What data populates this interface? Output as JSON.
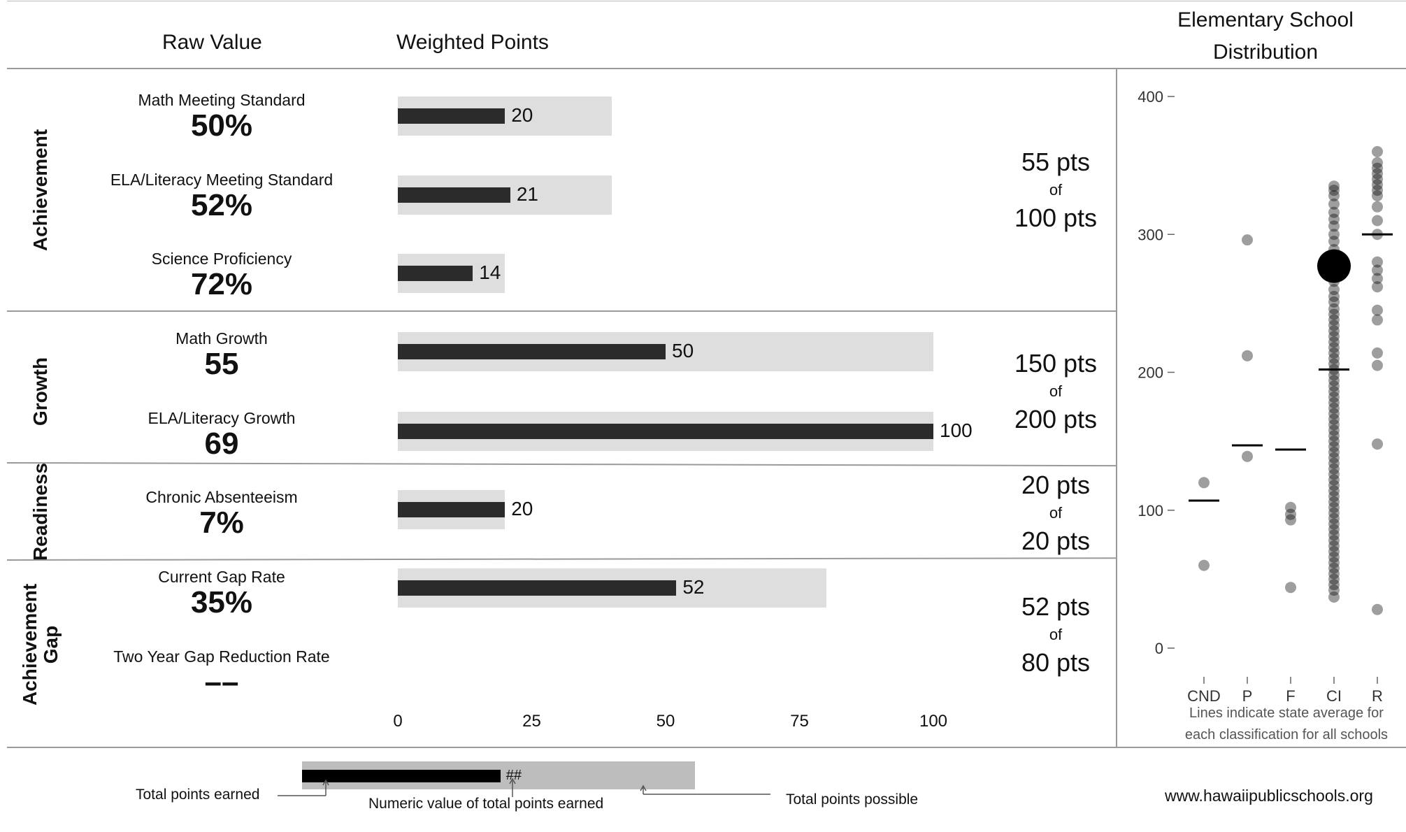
{
  "headers": {
    "raw_value": "Raw Value",
    "weighted_points": "Weighted Points",
    "distribution_title_line1": "Elementary School",
    "distribution_title_line2": "Distribution"
  },
  "categories": {
    "achievement": "Achievement",
    "growth": "Growth",
    "readiness": "Readiness",
    "gap_line1": "Achievement",
    "gap_line2": "Gap"
  },
  "metrics": [
    {
      "label": "Math Meeting Standard",
      "value": "50%",
      "points": 20,
      "possible": 40,
      "points_label": "20"
    },
    {
      "label": "ELA/Literacy Meeting Standard",
      "value": "52%",
      "points": 21,
      "possible": 40,
      "points_label": "21"
    },
    {
      "label": "Science Proficiency",
      "value": "72%",
      "points": 14,
      "possible": 20,
      "points_label": "14"
    },
    {
      "label": "Math Growth",
      "value": "55",
      "points": 50,
      "possible": 100,
      "points_label": "50"
    },
    {
      "label": "ELA/Literacy Growth",
      "value": "69",
      "points": 100,
      "possible": 100,
      "points_label": "100"
    },
    {
      "label": "Chronic Absenteeism",
      "value": "7%",
      "points": 20,
      "possible": 20,
      "points_label": "20"
    },
    {
      "label": "Current Gap Rate",
      "value": "35%",
      "points": 52,
      "possible": 80,
      "points_label": "52"
    },
    {
      "label": "Two Year Gap Reduction Rate",
      "value": "––"
    }
  ],
  "summaries": [
    {
      "earned": "55 pts",
      "of": "of",
      "possible": "100 pts"
    },
    {
      "earned": "150 pts",
      "of": "of",
      "possible": "200 pts"
    },
    {
      "earned": "20 pts",
      "of": "of",
      "possible": "20 pts"
    },
    {
      "earned": "52 pts",
      "of": "of",
      "possible": "80 pts"
    }
  ],
  "x_ticks": [
    "0",
    "25",
    "50",
    "75",
    "100"
  ],
  "legend": {
    "total_points_earned": "Total points earned",
    "numeric_value": "Numeric value of total points earned",
    "total_points_possible": "Total points possible",
    "placeholder": "##",
    "earned_fraction": 0.505
  },
  "footer": {
    "url": "www.hawaiipublicschools.org"
  },
  "distribution_note_line1": "Lines indicate state average for",
  "distribution_note_line2": "each classification for all schools",
  "chart_data": [
    {
      "type": "bar",
      "categories": [
        "Math Meeting Standard",
        "ELA/Literacy Meeting Standard",
        "Science Proficiency",
        "Math Growth",
        "ELA/Literacy Growth",
        "Chronic Absenteeism",
        "Current Gap Rate"
      ],
      "series": [
        {
          "values": [
            20,
            21,
            14,
            50,
            100,
            20,
            52
          ]
        },
        {
          "values": [
            40,
            40,
            20,
            100,
            100,
            20,
            80
          ]
        }
      ],
      "xlim": [
        0,
        100
      ],
      "x_ticks": [
        0,
        25,
        50,
        75,
        100
      ],
      "title": "Weighted Points"
    },
    {
      "type": "scatter",
      "title": "Elementary School Distribution",
      "categories": [
        "CND",
        "P",
        "F",
        "CI",
        "R"
      ],
      "ylim": [
        0,
        400
      ],
      "y_ticks": [
        0,
        100,
        200,
        300,
        400
      ],
      "averages": {
        "CND": 107,
        "P": 147,
        "F": 144,
        "CI": 202,
        "R": 300
      },
      "highlight": {
        "category": "CI",
        "y": 277
      },
      "points": {
        "CND": [
          120,
          60
        ],
        "P": [
          296,
          212,
          139
        ],
        "F": [
          102,
          97,
          93,
          44
        ],
        "CI": [
          335,
          332,
          328,
          322,
          316,
          311,
          306,
          300,
          295,
          289,
          285,
          281,
          275,
          271,
          266,
          260,
          255,
          251,
          246,
          242,
          238,
          234,
          230,
          226,
          222,
          218,
          214,
          210,
          206,
          202,
          198,
          194,
          190,
          186,
          182,
          178,
          174,
          170,
          166,
          162,
          158,
          154,
          150,
          146,
          142,
          138,
          134,
          130,
          126,
          122,
          118,
          114,
          110,
          106,
          102,
          98,
          94,
          90,
          86,
          82,
          78,
          74,
          70,
          66,
          62,
          58,
          54,
          50,
          46,
          42,
          37
        ],
        "R": [
          360,
          352,
          348,
          344,
          340,
          336,
          332,
          328,
          320,
          310,
          300,
          280,
          274,
          268,
          262,
          245,
          238,
          214,
          205,
          148,
          28
        ]
      }
    }
  ]
}
